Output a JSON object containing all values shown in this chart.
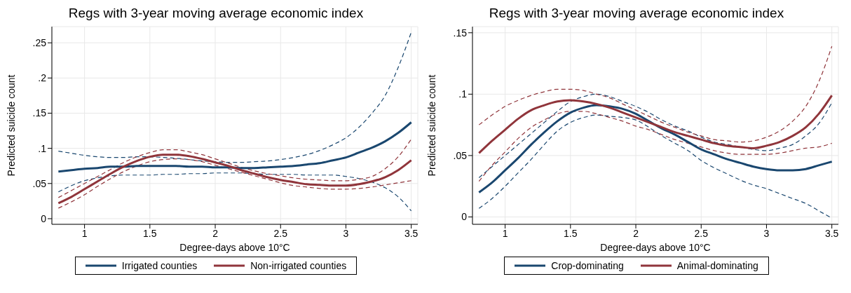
{
  "chart_data": [
    {
      "type": "line",
      "title": "Regs with 3-year moving average economic index",
      "xlabel": "Degree-days above 10°C",
      "ylabel": "Predicted suicide count",
      "grid": true,
      "legend": "bottom",
      "x": [
        0.8,
        0.9,
        1.0,
        1.1,
        1.2,
        1.3,
        1.4,
        1.5,
        1.6,
        1.7,
        1.8,
        1.9,
        2.0,
        2.1,
        2.2,
        2.3,
        2.4,
        2.5,
        2.6,
        2.7,
        2.8,
        2.9,
        3.0,
        3.1,
        3.2,
        3.3,
        3.4,
        3.5
      ],
      "xlim": [
        0.75,
        3.55
      ],
      "xticks": [
        1,
        1.5,
        2,
        2.5,
        3,
        3.5
      ],
      "ylim": [
        -0.008,
        0.273
      ],
      "yticks": [
        0,
        {
          "value": 0.05,
          "label": ".05"
        },
        {
          "value": 0.1,
          "label": ".1"
        },
        {
          "value": 0.15,
          "label": ".15"
        },
        {
          "value": 0.2,
          "label": ".2"
        },
        {
          "value": 0.25,
          "label": ".25"
        }
      ],
      "series": [
        {
          "color": "#1a476f",
          "line_style": "dashed",
          "values": [
            0.038,
            0.047,
            0.054,
            0.058,
            0.061,
            0.062,
            0.062,
            0.062,
            0.063,
            0.063,
            0.064,
            0.064,
            0.065,
            0.065,
            0.065,
            0.064,
            0.063,
            0.063,
            0.063,
            0.062,
            0.062,
            0.062,
            0.06,
            0.057,
            0.052,
            0.044,
            0.031,
            0.011
          ]
        },
        {
          "color": "#1a476f",
          "line_style": "dashed",
          "values": [
            0.096,
            0.093,
            0.09,
            0.088,
            0.087,
            0.087,
            0.088,
            0.088,
            0.087,
            0.086,
            0.084,
            0.082,
            0.081,
            0.08,
            0.08,
            0.081,
            0.082,
            0.084,
            0.087,
            0.091,
            0.097,
            0.105,
            0.115,
            0.13,
            0.15,
            0.175,
            0.215,
            0.265
          ]
        },
        {
          "color": "#90353b",
          "line_style": "dashed",
          "values": [
            0.015,
            0.024,
            0.034,
            0.046,
            0.057,
            0.067,
            0.075,
            0.081,
            0.084,
            0.085,
            0.084,
            0.081,
            0.076,
            0.071,
            0.066,
            0.061,
            0.056,
            0.051,
            0.047,
            0.045,
            0.043,
            0.042,
            0.042,
            0.043,
            0.045,
            0.048,
            0.051,
            0.054
          ]
        },
        {
          "color": "#90353b",
          "line_style": "dashed",
          "values": [
            0.03,
            0.04,
            0.05,
            0.06,
            0.07,
            0.08,
            0.088,
            0.094,
            0.098,
            0.098,
            0.095,
            0.091,
            0.085,
            0.079,
            0.073,
            0.068,
            0.064,
            0.061,
            0.058,
            0.056,
            0.055,
            0.054,
            0.054,
            0.056,
            0.06,
            0.071,
            0.088,
            0.113
          ]
        },
        {
          "name": "Irrigated counties",
          "color": "#1a476f",
          "line_style": "solid",
          "values": [
            0.067,
            0.069,
            0.071,
            0.072,
            0.074,
            0.074,
            0.075,
            0.075,
            0.075,
            0.075,
            0.074,
            0.074,
            0.073,
            0.073,
            0.072,
            0.072,
            0.073,
            0.074,
            0.075,
            0.077,
            0.079,
            0.083,
            0.087,
            0.094,
            0.101,
            0.11,
            0.122,
            0.137
          ]
        },
        {
          "name": "Non-irrigated counties",
          "color": "#90353b",
          "line_style": "solid",
          "values": [
            0.022,
            0.031,
            0.042,
            0.053,
            0.064,
            0.074,
            0.082,
            0.088,
            0.091,
            0.091,
            0.089,
            0.085,
            0.08,
            0.075,
            0.069,
            0.064,
            0.059,
            0.055,
            0.052,
            0.049,
            0.048,
            0.047,
            0.047,
            0.049,
            0.053,
            0.059,
            0.069,
            0.083
          ]
        }
      ]
    },
    {
      "type": "line",
      "title": "Regs with 3-year moving average economic index",
      "xlabel": "Degree-days above 10°C",
      "ylabel": "Predicted suicide count",
      "grid": true,
      "legend": "bottom",
      "x": [
        0.8,
        0.9,
        1.0,
        1.1,
        1.2,
        1.3,
        1.4,
        1.5,
        1.6,
        1.7,
        1.8,
        1.9,
        2.0,
        2.1,
        2.2,
        2.3,
        2.4,
        2.5,
        2.6,
        2.7,
        2.8,
        2.9,
        3.0,
        3.1,
        3.2,
        3.3,
        3.4,
        3.5
      ],
      "xlim": [
        0.75,
        3.55
      ],
      "xticks": [
        1,
        1.5,
        2,
        2.5,
        3,
        3.5
      ],
      "ylim": [
        -0.006,
        0.155
      ],
      "yticks": [
        0,
        {
          "value": 0.05,
          "label": ".05"
        },
        {
          "value": 0.1,
          "label": ".1"
        },
        {
          "value": 0.15,
          "label": ".15"
        }
      ],
      "series": [
        {
          "color": "#1a476f",
          "line_style": "dashed",
          "values": [
            0.007,
            0.015,
            0.025,
            0.036,
            0.047,
            0.059,
            0.07,
            0.077,
            0.081,
            0.083,
            0.082,
            0.081,
            0.079,
            0.073,
            0.066,
            0.06,
            0.054,
            0.046,
            0.04,
            0.035,
            0.03,
            0.026,
            0.023,
            0.019,
            0.015,
            0.011,
            0.005,
            -0.001
          ]
        },
        {
          "color": "#1a476f",
          "line_style": "dashed",
          "values": [
            0.032,
            0.041,
            0.05,
            0.059,
            0.068,
            0.077,
            0.086,
            0.094,
            0.098,
            0.1,
            0.098,
            0.094,
            0.09,
            0.085,
            0.079,
            0.074,
            0.07,
            0.065,
            0.061,
            0.059,
            0.057,
            0.055,
            0.054,
            0.056,
            0.059,
            0.066,
            0.076,
            0.093
          ]
        },
        {
          "color": "#90353b",
          "line_style": "dashed",
          "values": [
            0.029,
            0.042,
            0.053,
            0.064,
            0.073,
            0.079,
            0.084,
            0.086,
            0.086,
            0.084,
            0.081,
            0.078,
            0.074,
            0.071,
            0.067,
            0.063,
            0.06,
            0.057,
            0.054,
            0.052,
            0.051,
            0.051,
            0.051,
            0.052,
            0.054,
            0.056,
            0.057,
            0.06
          ]
        },
        {
          "color": "#90353b",
          "line_style": "dashed",
          "values": [
            0.075,
            0.083,
            0.09,
            0.095,
            0.099,
            0.102,
            0.104,
            0.104,
            0.103,
            0.1,
            0.097,
            0.092,
            0.087,
            0.082,
            0.077,
            0.073,
            0.069,
            0.066,
            0.063,
            0.062,
            0.061,
            0.062,
            0.065,
            0.07,
            0.078,
            0.09,
            0.11,
            0.139
          ]
        },
        {
          "name": "Crop-dominating",
          "color": "#1a476f",
          "line_style": "solid",
          "values": [
            0.02,
            0.028,
            0.038,
            0.048,
            0.059,
            0.069,
            0.078,
            0.085,
            0.089,
            0.091,
            0.09,
            0.088,
            0.084,
            0.078,
            0.072,
            0.067,
            0.061,
            0.055,
            0.051,
            0.047,
            0.044,
            0.041,
            0.039,
            0.038,
            0.038,
            0.039,
            0.042,
            0.045
          ]
        },
        {
          "name": "Animal-dominating",
          "color": "#90353b",
          "line_style": "solid",
          "values": [
            0.052,
            0.062,
            0.071,
            0.08,
            0.087,
            0.091,
            0.094,
            0.095,
            0.094,
            0.092,
            0.089,
            0.085,
            0.081,
            0.077,
            0.073,
            0.069,
            0.066,
            0.063,
            0.06,
            0.058,
            0.057,
            0.056,
            0.058,
            0.061,
            0.066,
            0.073,
            0.084,
            0.099
          ]
        }
      ]
    }
  ]
}
